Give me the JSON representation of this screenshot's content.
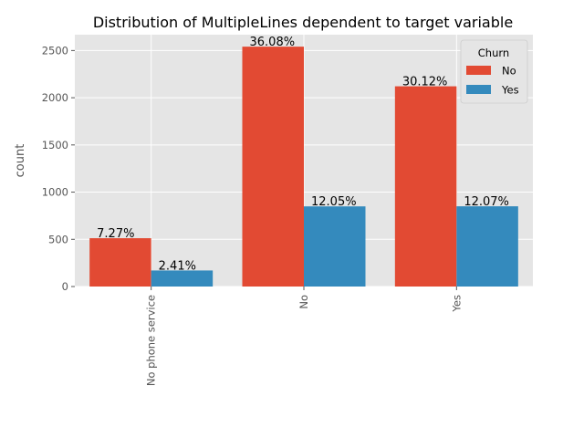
{
  "chart_data": {
    "type": "bar",
    "title": "Distribution of MultipleLines dependent to target variable",
    "xlabel": "",
    "ylabel": "count",
    "categories": [
      "No phone service",
      "No",
      "Yes"
    ],
    "series": [
      {
        "name": "No",
        "values": [
          512,
          2541,
          2121
        ],
        "labels": [
          "7.27%",
          "36.08%",
          "30.12%"
        ],
        "color": "#E24A33"
      },
      {
        "name": "Yes",
        "values": [
          170,
          849,
          850
        ],
        "labels": [
          "2.41%",
          "12.05%",
          "12.07%"
        ],
        "color": "#348ABD"
      }
    ],
    "ylim": [
      0,
      2668
    ],
    "yticks": [
      0,
      500,
      1000,
      1500,
      2000,
      2500
    ],
    "grid": true,
    "legend": {
      "title": "Churn",
      "position": "top-right"
    },
    "style": {
      "background": "#E5E5E5",
      "grid_color": "#FFFFFF",
      "tick_color": "#555555"
    }
  }
}
